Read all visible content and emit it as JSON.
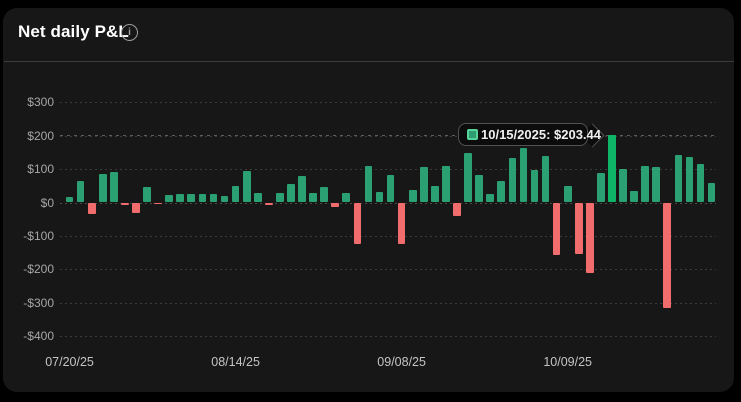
{
  "header": {
    "title": "Net daily P&L",
    "info_glyph": "i"
  },
  "tooltip": {
    "text": "10/15/2025: $203.44",
    "date": "10/15/2025",
    "value": "$203.44"
  },
  "colors": {
    "background": "#000000",
    "card": "#171717",
    "positive": "#2ba173",
    "positive_hover": "#0eb567",
    "negative": "#f16c6c",
    "grid": "#3b3b3b",
    "zero_line": "#4a4a4a",
    "y_label": "#a6a6a6",
    "x_label": "#c4c4c4",
    "title": "#ffffff",
    "tooltip_bg": "#0c0c0c",
    "tooltip_border": "#525252",
    "swatch_fill": "#2e9b72",
    "swatch_border": "#55d398"
  },
  "chart_data": {
    "type": "bar",
    "title": "Net daily P&L",
    "xlabel": "",
    "ylabel": "",
    "ylim": [
      -400,
      300
    ],
    "grid": "dashed-horizontal",
    "y_ticks": [
      {
        "label": "$300",
        "value": 300
      },
      {
        "label": "$200",
        "value": 200
      },
      {
        "label": "$100",
        "value": 100
      },
      {
        "label": "$0",
        "value": 0
      },
      {
        "label": "-$100",
        "value": -100
      },
      {
        "label": "-$200",
        "value": -200
      },
      {
        "label": "-$300",
        "value": -300
      },
      {
        "label": "-$400",
        "value": -400
      }
    ],
    "x_ticks": [
      {
        "label": "07/20/25",
        "slot": 0
      },
      {
        "label": "08/14/25",
        "slot": 15
      },
      {
        "label": "09/08/25",
        "slot": 30
      },
      {
        "label": "10/09/25",
        "slot": 45
      }
    ],
    "values": [
      16,
      63,
      -34,
      85,
      91,
      -5,
      -30,
      46,
      -4,
      23,
      25,
      24,
      26,
      25,
      20,
      48,
      95,
      28,
      -5,
      29,
      55,
      80,
      28,
      46,
      -12,
      28,
      -122,
      110,
      30,
      83,
      -124,
      38,
      106,
      50,
      108,
      -40,
      148,
      83,
      26,
      63,
      133,
      163,
      98,
      140,
      -157,
      50,
      -152,
      -210,
      88,
      203.44,
      101,
      33,
      110,
      106,
      -315,
      142,
      136,
      115,
      58
    ],
    "hovered": {
      "index": 49,
      "date": "10/15/2025",
      "value": 203.44
    }
  }
}
